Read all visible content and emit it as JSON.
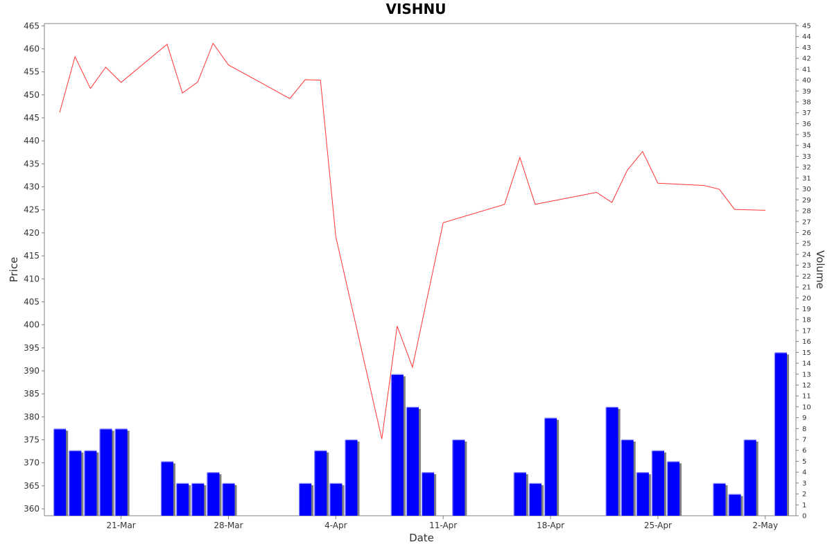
{
  "chart_data": {
    "type": "bar+line",
    "title": "VISHNU",
    "xlabel": "Date",
    "ylabel_left": "Price",
    "ylabel_right": "Volume",
    "x_tick_labels": [
      {
        "date": "2019-03-21",
        "label": "21-Mar"
      },
      {
        "date": "2019-03-28",
        "label": "28-Mar"
      },
      {
        "date": "2019-04-04",
        "label": "4-Apr"
      },
      {
        "date": "2019-04-11",
        "label": "11-Apr"
      },
      {
        "date": "2019-04-18",
        "label": "18-Apr"
      },
      {
        "date": "2019-04-25",
        "label": "25-Apr"
      },
      {
        "date": "2019-05-02",
        "label": "2-May"
      }
    ],
    "xlim": [
      "2019-03-16",
      "2019-05-04"
    ],
    "price_axis": {
      "min": 358.5,
      "max": 465.5,
      "ticks": [
        360,
        365,
        370,
        375,
        380,
        385,
        390,
        395,
        400,
        405,
        410,
        415,
        420,
        425,
        430,
        435,
        440,
        445,
        450,
        455,
        460,
        465
      ]
    },
    "volume_axis": {
      "min": 0,
      "max": 45,
      "step": 1
    },
    "grid": false,
    "legend": "none",
    "colors": {
      "price_line": "#ff3333",
      "volume_bar": "#0000ff",
      "bar_shadow": "#808080",
      "axis": "#808080"
    },
    "price_series": {
      "name": "Price",
      "points": [
        {
          "date": "2019-03-17",
          "value": 446.2
        },
        {
          "date": "2019-03-18",
          "value": 458.3
        },
        {
          "date": "2019-03-19",
          "value": 451.4
        },
        {
          "date": "2019-03-20",
          "value": 456.0
        },
        {
          "date": "2019-03-21",
          "value": 452.7
        },
        {
          "date": "2019-03-24",
          "value": 461.0
        },
        {
          "date": "2019-03-25",
          "value": 450.4
        },
        {
          "date": "2019-03-26",
          "value": 452.8
        },
        {
          "date": "2019-03-27",
          "value": 461.2
        },
        {
          "date": "2019-03-28",
          "value": 456.5
        },
        {
          "date": "2019-04-01",
          "value": 449.2
        },
        {
          "date": "2019-04-02",
          "value": 453.3
        },
        {
          "date": "2019-04-03",
          "value": 453.2
        },
        {
          "date": "2019-04-04",
          "value": 419.2
        },
        {
          "date": "2019-04-07",
          "value": 375.2
        },
        {
          "date": "2019-04-08",
          "value": 399.7
        },
        {
          "date": "2019-04-09",
          "value": 390.8
        },
        {
          "date": "2019-04-11",
          "value": 422.2
        },
        {
          "date": "2019-04-15",
          "value": 426.2
        },
        {
          "date": "2019-04-16",
          "value": 436.4
        },
        {
          "date": "2019-04-17",
          "value": 426.2
        },
        {
          "date": "2019-04-21",
          "value": 428.8
        },
        {
          "date": "2019-04-22",
          "value": 426.6
        },
        {
          "date": "2019-04-23",
          "value": 433.6
        },
        {
          "date": "2019-04-24",
          "value": 437.7
        },
        {
          "date": "2019-04-25",
          "value": 430.8
        },
        {
          "date": "2019-04-28",
          "value": 430.3
        },
        {
          "date": "2019-04-29",
          "value": 429.5
        },
        {
          "date": "2019-04-30",
          "value": 425.1
        },
        {
          "date": "2019-05-02",
          "value": 424.9
        }
      ]
    },
    "volume_series": {
      "name": "Volume",
      "points": [
        {
          "date": "2019-03-17",
          "value": 8
        },
        {
          "date": "2019-03-18",
          "value": 6
        },
        {
          "date": "2019-03-19",
          "value": 6
        },
        {
          "date": "2019-03-20",
          "value": 8
        },
        {
          "date": "2019-03-21",
          "value": 8
        },
        {
          "date": "2019-03-24",
          "value": 5
        },
        {
          "date": "2019-03-25",
          "value": 3
        },
        {
          "date": "2019-03-26",
          "value": 3
        },
        {
          "date": "2019-03-27",
          "value": 4
        },
        {
          "date": "2019-03-28",
          "value": 3
        },
        {
          "date": "2019-04-02",
          "value": 3
        },
        {
          "date": "2019-04-03",
          "value": 6
        },
        {
          "date": "2019-04-04",
          "value": 3
        },
        {
          "date": "2019-04-05",
          "value": 7
        },
        {
          "date": "2019-04-08",
          "value": 13
        },
        {
          "date": "2019-04-09",
          "value": 10
        },
        {
          "date": "2019-04-10",
          "value": 4
        },
        {
          "date": "2019-04-12",
          "value": 7
        },
        {
          "date": "2019-04-16",
          "value": 4
        },
        {
          "date": "2019-04-17",
          "value": 3
        },
        {
          "date": "2019-04-18",
          "value": 9
        },
        {
          "date": "2019-04-22",
          "value": 10
        },
        {
          "date": "2019-04-23",
          "value": 7
        },
        {
          "date": "2019-04-24",
          "value": 4
        },
        {
          "date": "2019-04-25",
          "value": 6
        },
        {
          "date": "2019-04-26",
          "value": 5
        },
        {
          "date": "2019-04-29",
          "value": 3
        },
        {
          "date": "2019-04-30",
          "value": 2
        },
        {
          "date": "2019-05-01",
          "value": 7
        },
        {
          "date": "2019-05-03",
          "value": 15
        }
      ]
    }
  }
}
